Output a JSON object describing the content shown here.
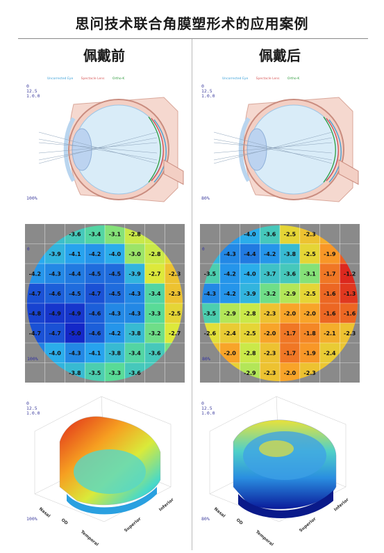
{
  "title": "思问技术联合角膜塑形术的应用案例",
  "columns": [
    {
      "heading": "佩戴前",
      "legend": [
        "Uncorrected Eye",
        "Spectacle Lens",
        "Ortho-K"
      ],
      "scale": [
        "0",
        "12.5",
        "1.0.0"
      ],
      "percent": "100%",
      "grid": [
        [
          "",
          "",
          "-3.6",
          "-3.4",
          "-3.1",
          "-2.8",
          "",
          ""
        ],
        [
          "",
          "-3.9",
          "-4.1",
          "-4.2",
          "-4.0",
          "-3.0",
          "-2.8",
          ""
        ],
        [
          "-4.2",
          "-4.3",
          "-4.4",
          "-4.5",
          "-4.5",
          "-3.9",
          "-2.7",
          "-2.3"
        ],
        [
          "-4.7",
          "-4.6",
          "-4.5",
          "-4.7",
          "-4.5",
          "-4.3",
          "-3.4",
          "-2.3"
        ],
        [
          "-4.8",
          "-4.9",
          "-4.9",
          "-4.6",
          "-4.3",
          "-4.3",
          "-3.3",
          "-2.5"
        ],
        [
          "-4.7",
          "-4.7",
          "-5.0",
          "-4.6",
          "-4.2",
          "-3.8",
          "-3.2",
          "-2.7"
        ],
        [
          "",
          "-4.0",
          "-4.3",
          "-4.1",
          "-3.8",
          "-3.4",
          "-3.6",
          ""
        ],
        [
          "",
          "",
          "-3.8",
          "-3.5",
          "-3.3",
          "-3.6",
          "",
          ""
        ]
      ],
      "axes3d": [
        "Nasal",
        "OD",
        "Temporal",
        "Superior",
        "Inferior"
      ]
    },
    {
      "heading": "佩戴后",
      "legend": [
        "Uncorrected Eye",
        "Spectacle Lens",
        "Ortho-K"
      ],
      "scale": [
        "0",
        "12.5",
        "1.0.0"
      ],
      "percent": "80%",
      "grid": [
        [
          "",
          "",
          "-4.0",
          "-3.6",
          "-2.5",
          "-2.3",
          "",
          ""
        ],
        [
          "",
          "-4.3",
          "-4.4",
          "-4.2",
          "-3.8",
          "-2.5",
          "-1.9",
          ""
        ],
        [
          "-3.5",
          "-4.2",
          "-4.0",
          "-3.7",
          "-3.6",
          "-3.1",
          "-1.7",
          "-1.2"
        ],
        [
          "-4.3",
          "-4.2",
          "-3.9",
          "-3.2",
          "-2.9",
          "-2.5",
          "-1.6",
          "-1.3"
        ],
        [
          "-3.5",
          "-2.9",
          "-2.8",
          "-2.3",
          "-2.0",
          "-2.0",
          "-1.6",
          "-1.6"
        ],
        [
          "-2.6",
          "-2.4",
          "-2.5",
          "-2.0",
          "-1.7",
          "-1.8",
          "-2.1",
          "-2.3"
        ],
        [
          "",
          "-2.0",
          "-2.8",
          "-2.3",
          "-1.7",
          "-1.9",
          "-2.4",
          ""
        ],
        [
          "",
          "",
          "-2.9",
          "-2.3",
          "-2.0",
          "-2.3",
          "",
          ""
        ]
      ],
      "axes3d": [
        "Nasal",
        "OD",
        "Temporal",
        "Superior",
        "Inferior"
      ]
    }
  ],
  "colors": {
    "uncorrected": "#3aa0d8",
    "spectacle": "#d85a5a",
    "orthok": "#2e9b3e",
    "map_bg": "#8a8a8a"
  }
}
